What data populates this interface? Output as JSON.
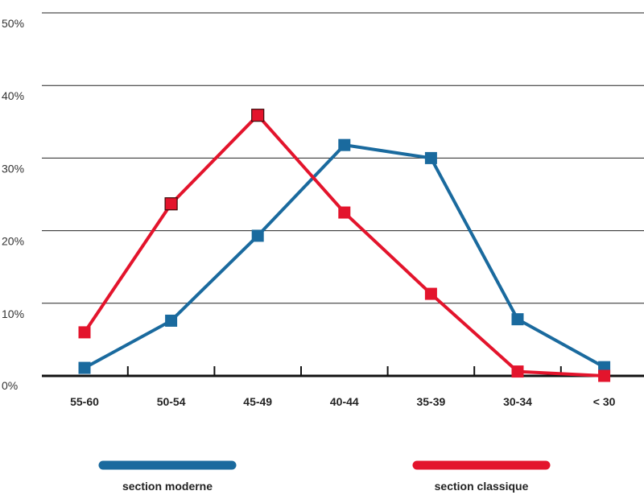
{
  "chart_data": {
    "type": "line",
    "categories": [
      "55-60",
      "50-54",
      "45-49",
      "40-44",
      "35-39",
      "30-34",
      "< 30"
    ],
    "y_ticks": [
      "0%",
      "10%",
      "20%",
      "30%",
      "40%",
      "50%"
    ],
    "ylim": [
      0,
      50
    ],
    "grid": "horizontal",
    "legend_placement": "bottom",
    "series": [
      {
        "name": "section moderne",
        "color": "#1a6a9e",
        "values": [
          1.1,
          7.6,
          19.3,
          31.8,
          30.0,
          7.8,
          1.2
        ]
      },
      {
        "name": "section classique",
        "color": "#e3142c",
        "values": [
          6.0,
          23.7,
          35.9,
          22.5,
          11.3,
          0.6,
          0.0
        ]
      }
    ]
  }
}
